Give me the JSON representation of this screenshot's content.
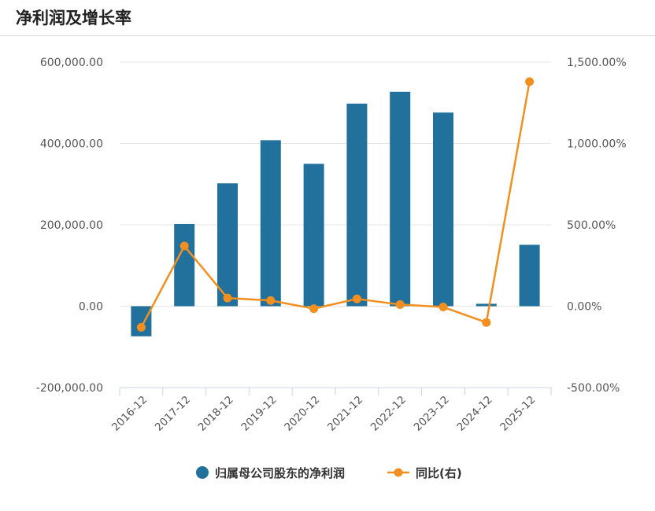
{
  "header": {
    "title": "净利润及增长率"
  },
  "chart_data": {
    "type": "bar",
    "categories": [
      "2016-12",
      "2017-12",
      "2018-12",
      "2019-12",
      "2020-12",
      "2021-12",
      "2022-12",
      "2023-12",
      "2024-12",
      "2025-12"
    ],
    "series": [
      {
        "name": "归属母公司股东的净利润",
        "type": "bar",
        "axis": "left",
        "color": "#21719c",
        "values": [
          -74000,
          202000,
          302000,
          408000,
          350000,
          498000,
          527000,
          476000,
          6000,
          151000
        ]
      },
      {
        "name": "同比(右)",
        "type": "line",
        "axis": "right",
        "color": "#f28f1f",
        "values": [
          -130,
          370,
          50,
          35,
          -15,
          45,
          10,
          -5,
          -100,
          1380
        ]
      }
    ],
    "y_left": {
      "ylim": [
        -200000,
        600000
      ],
      "ticks": [
        "-200,000.00",
        "0.00",
        "200,000.00",
        "400,000.00",
        "600,000.00"
      ]
    },
    "y_right": {
      "ylim": [
        -500,
        1500
      ],
      "ticks": [
        "-500.00%",
        "0.00%",
        "500.00%",
        "1,000.00%",
        "1,500.00%"
      ]
    },
    "grid": true,
    "legend": "bottom-center"
  }
}
